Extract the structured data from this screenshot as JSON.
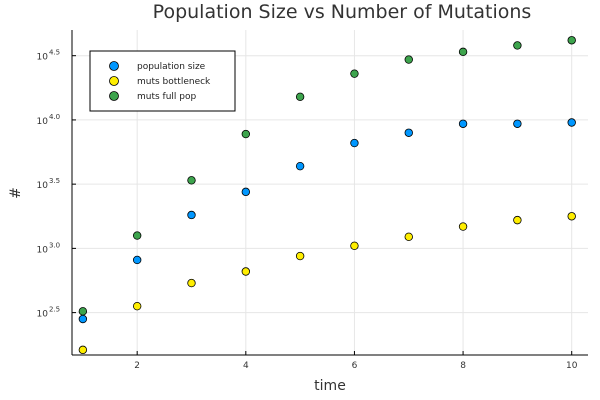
{
  "chart_data": {
    "type": "scatter",
    "title": "Population Size vs Number of Mutations",
    "xlabel": "time",
    "ylabel": "#",
    "x": [
      1,
      2,
      3,
      4,
      5,
      6,
      7,
      8,
      9,
      10
    ],
    "xlim": [
      0.8,
      10.3
    ],
    "xticks": [
      2,
      4,
      6,
      8,
      10
    ],
    "y_scale": "log10",
    "ylim_log10": [
      2.17,
      4.7
    ],
    "yticks": [
      {
        "base": "10",
        "exp": "2.5",
        "log10": 2.5
      },
      {
        "base": "10",
        "exp": "3.0",
        "log10": 3.0
      },
      {
        "base": "10",
        "exp": "3.5",
        "log10": 3.5
      },
      {
        "base": "10",
        "exp": "4.0",
        "log10": 4.0
      },
      {
        "base": "10",
        "exp": "4.5",
        "log10": 4.5
      }
    ],
    "grid": true,
    "legend_position": "top-left",
    "series": [
      {
        "name": "population size",
        "color": "#0097ff",
        "log10_values": [
          2.45,
          2.91,
          3.26,
          3.44,
          3.64,
          3.82,
          3.9,
          3.97,
          3.97,
          3.98
        ]
      },
      {
        "name": "muts bottleneck",
        "color": "#ffee00",
        "log10_values": [
          2.21,
          2.55,
          2.73,
          2.82,
          2.94,
          3.02,
          3.09,
          3.17,
          3.22,
          3.25
        ]
      },
      {
        "name": "muts full pop",
        "color": "#3da44d",
        "log10_values": [
          2.51,
          3.1,
          3.53,
          3.89,
          4.18,
          4.36,
          4.47,
          4.53,
          4.58,
          4.62
        ]
      }
    ]
  }
}
